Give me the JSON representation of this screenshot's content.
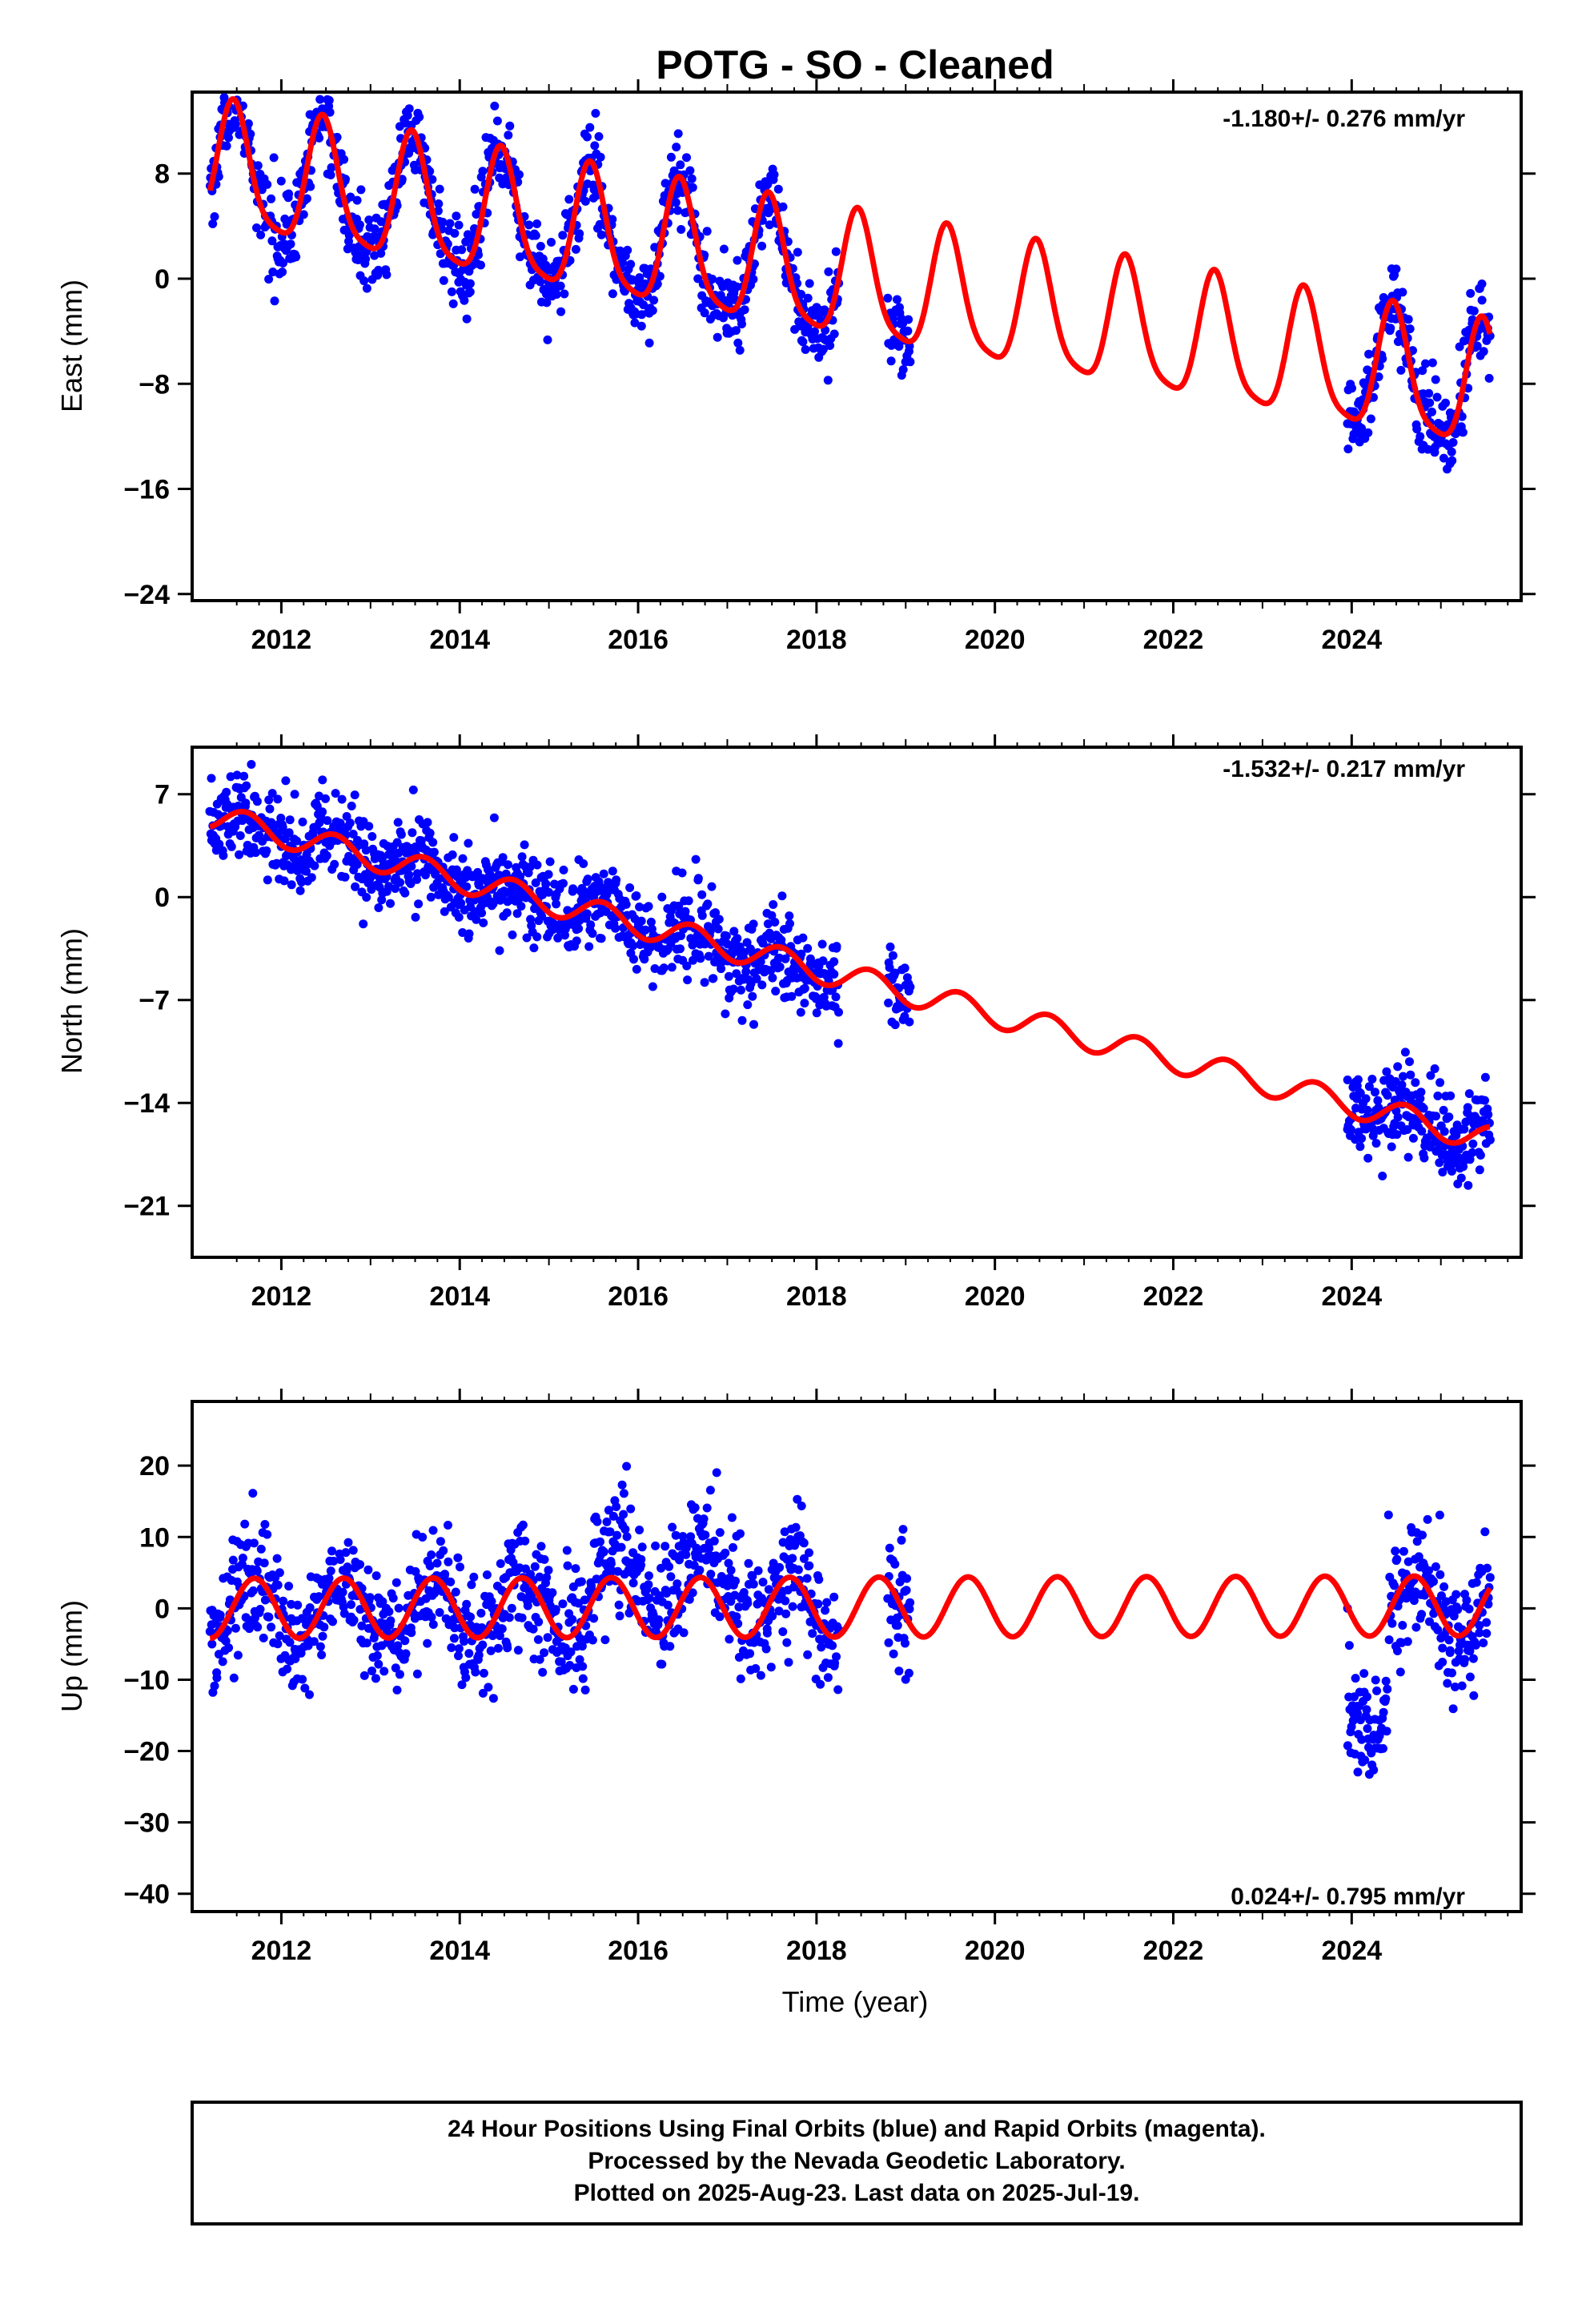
{
  "title": "POTG  - SO - Cleaned",
  "colors": {
    "points": "#0000ff",
    "model": "#ff0000",
    "frame": "#000000"
  },
  "xlabel": "Time (year)",
  "footer": {
    "line1": "24 Hour Positions Using Final Orbits (blue) and Rapid Orbits (magenta).",
    "line2": "Processed by the Nevada Geodetic Laboratory.",
    "line3": "Plotted on 2025-Aug-23. Last data on 2025-Jul-19."
  },
  "chart_data": [
    {
      "type": "scatter",
      "ylabel": "East (mm)",
      "rate": "-1.180+/- 0.276 mm/yr",
      "rate_position": "top-right",
      "xlim": [
        2011.0,
        2025.9
      ],
      "ylim": [
        -24.5,
        14.2
      ],
      "xticks": [
        2012,
        2014,
        2016,
        2018,
        2020,
        2022,
        2024
      ],
      "yticks": [
        8,
        0,
        -8,
        -16,
        -24
      ],
      "ytick_labels": [
        "8",
        "0",
        "−8",
        "−16",
        "−24"
      ],
      "data_spans": [
        [
          2011.2,
          2018.25
        ],
        [
          2018.8,
          2019.05
        ],
        [
          2023.95,
          2025.55
        ]
      ],
      "model": {
        "offset": 8.3,
        "slope": -1.18,
        "t0": 2011.2,
        "annual_amp": 4.7,
        "annual_peak": 2011.47,
        "semiannual_amp": 1.0,
        "semiannual_peak": 2011.45
      },
      "series": [
        {
          "name": "Final Orbits (blue)",
          "points": "daily positions"
        },
        {
          "name": "model",
          "points": "fitted trend with seasonal terms"
        }
      ],
      "scatter_sd": 1.6
    },
    {
      "type": "scatter",
      "ylabel": "North (mm)",
      "rate": "-1.532+/- 0.217 mm/yr",
      "rate_position": "top-right",
      "xlim": [
        2011.0,
        2025.9
      ],
      "ylim": [
        -24.5,
        10.2
      ],
      "xticks": [
        2012,
        2014,
        2016,
        2018,
        2020,
        2022,
        2024
      ],
      "yticks": [
        7,
        0,
        -7,
        -14,
        -21
      ],
      "ytick_labels": [
        "7",
        "0",
        "−7",
        "−14",
        "−21"
      ],
      "data_spans": [
        [
          2011.2,
          2018.25
        ],
        [
          2018.8,
          2019.05
        ],
        [
          2023.95,
          2025.55
        ]
      ],
      "model": {
        "offset": 5.5,
        "slope": -1.532,
        "t0": 2011.2,
        "annual_amp": 0.9,
        "annual_peak": 2011.6,
        "semiannual_amp": 0.0,
        "semiannual_peak": 2011.6
      },
      "series": [
        {
          "name": "Final Orbits (blue)",
          "points": "daily positions"
        },
        {
          "name": "model",
          "points": "fitted trend with seasonal terms"
        }
      ],
      "scatter_sd": 1.4
    },
    {
      "type": "scatter",
      "ylabel": "Up (mm)",
      "rate": "0.024+/- 0.795 mm/yr",
      "rate_position": "bottom-right",
      "xlim": [
        2011.0,
        2025.9
      ],
      "ylim": [
        -42.5,
        29.0
      ],
      "xticks": [
        2012,
        2014,
        2016,
        2018,
        2020,
        2022,
        2024
      ],
      "yticks": [
        20,
        10,
        0,
        -10,
        -20,
        -30,
        -40
      ],
      "ytick_labels": [
        "20",
        "10",
        "0",
        "−10",
        "−20",
        "−30",
        "−40"
      ],
      "data_spans": [
        [
          2011.2,
          2018.25
        ],
        [
          2018.8,
          2019.05
        ],
        [
          2023.95,
          2025.55
        ]
      ],
      "model": {
        "offset": 0.0,
        "slope": 0.024,
        "t0": 2011.2,
        "annual_amp": 4.2,
        "annual_peak": 2011.7,
        "semiannual_amp": 0.0,
        "semiannual_peak": 2011.7
      },
      "series": [
        {
          "name": "Final Orbits (blue)",
          "points": "daily positions"
        },
        {
          "name": "model",
          "points": "fitted trend with seasonal terms"
        }
      ],
      "scatter_sd": 4.2
    }
  ]
}
